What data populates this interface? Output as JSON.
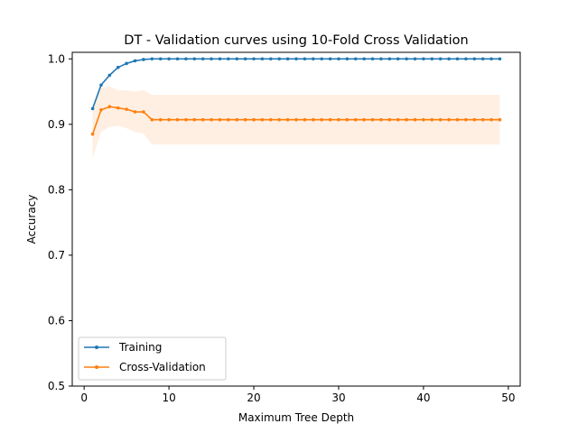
{
  "chart_data": {
    "type": "line",
    "title": "DT - Validation curves using 10-Fold Cross Validation",
    "xlabel": "Maximum Tree Depth",
    "ylabel": "Accuracy",
    "xlim": [
      -1.4,
      51.4
    ],
    "ylim": [
      0.5,
      1.01
    ],
    "xticks": [
      0,
      10,
      20,
      30,
      40,
      50
    ],
    "yticks": [
      0.5,
      0.6,
      0.7,
      0.8,
      0.9,
      1.0
    ],
    "ytick_labels": [
      "0.5",
      "0.6",
      "0.7",
      "0.8",
      "0.9",
      "1.0"
    ],
    "grid": false,
    "legend_position": "lower-left",
    "x": [
      1,
      2,
      3,
      4,
      5,
      6,
      7,
      8,
      9,
      10,
      11,
      12,
      13,
      14,
      15,
      16,
      17,
      18,
      19,
      20,
      21,
      22,
      23,
      24,
      25,
      26,
      27,
      28,
      29,
      30,
      31,
      32,
      33,
      34,
      35,
      36,
      37,
      38,
      39,
      40,
      41,
      42,
      43,
      44,
      45,
      46,
      47,
      48,
      49
    ],
    "series": [
      {
        "name": "Training",
        "color": "#1f77b4",
        "values": [
          0.924,
          0.96,
          0.975,
          0.987,
          0.993,
          0.997,
          0.999,
          1.0,
          1.0,
          1.0,
          1.0,
          1.0,
          1.0,
          1.0,
          1.0,
          1.0,
          1.0,
          1.0,
          1.0,
          1.0,
          1.0,
          1.0,
          1.0,
          1.0,
          1.0,
          1.0,
          1.0,
          1.0,
          1.0,
          1.0,
          1.0,
          1.0,
          1.0,
          1.0,
          1.0,
          1.0,
          1.0,
          1.0,
          1.0,
          1.0,
          1.0,
          1.0,
          1.0,
          1.0,
          1.0,
          1.0,
          1.0,
          1.0,
          1.0
        ]
      },
      {
        "name": "Cross-Validation",
        "color": "#ff7f0e",
        "values": [
          0.885,
          0.922,
          0.927,
          0.925,
          0.923,
          0.919,
          0.919,
          0.907,
          0.907,
          0.907,
          0.907,
          0.907,
          0.907,
          0.907,
          0.907,
          0.907,
          0.907,
          0.907,
          0.907,
          0.907,
          0.907,
          0.907,
          0.907,
          0.907,
          0.907,
          0.907,
          0.907,
          0.907,
          0.907,
          0.907,
          0.907,
          0.907,
          0.907,
          0.907,
          0.907,
          0.907,
          0.907,
          0.907,
          0.907,
          0.907,
          0.907,
          0.907,
          0.907,
          0.907,
          0.907,
          0.907,
          0.907,
          0.907,
          0.907
        ],
        "band_lower": [
          0.848,
          0.888,
          0.896,
          0.898,
          0.894,
          0.888,
          0.886,
          0.869,
          0.869,
          0.869,
          0.869,
          0.869,
          0.869,
          0.869,
          0.869,
          0.869,
          0.869,
          0.869,
          0.869,
          0.869,
          0.869,
          0.869,
          0.869,
          0.869,
          0.869,
          0.869,
          0.869,
          0.869,
          0.869,
          0.869,
          0.869,
          0.869,
          0.869,
          0.869,
          0.869,
          0.869,
          0.869,
          0.869,
          0.869,
          0.869,
          0.869,
          0.869,
          0.869,
          0.869,
          0.869,
          0.869,
          0.869,
          0.869,
          0.869
        ],
        "band_upper": [
          0.922,
          0.956,
          0.958,
          0.952,
          0.952,
          0.95,
          0.952,
          0.945,
          0.945,
          0.945,
          0.945,
          0.945,
          0.945,
          0.945,
          0.945,
          0.945,
          0.945,
          0.945,
          0.945,
          0.945,
          0.945,
          0.945,
          0.945,
          0.945,
          0.945,
          0.945,
          0.945,
          0.945,
          0.945,
          0.945,
          0.945,
          0.945,
          0.945,
          0.945,
          0.945,
          0.945,
          0.945,
          0.945,
          0.945,
          0.945,
          0.945,
          0.945,
          0.945,
          0.945,
          0.945,
          0.945,
          0.945,
          0.945,
          0.945
        ]
      }
    ]
  }
}
